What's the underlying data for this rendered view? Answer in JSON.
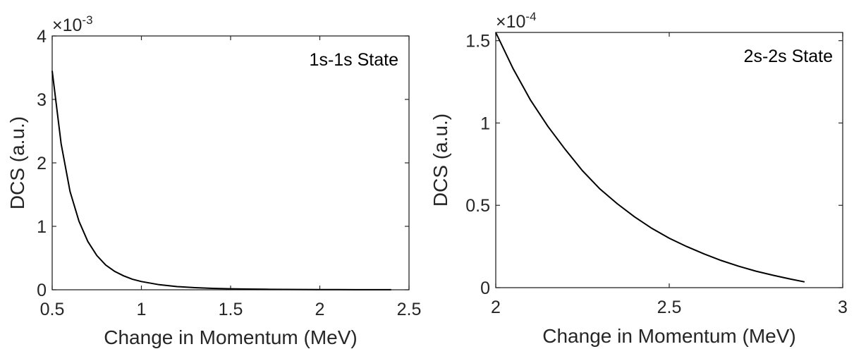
{
  "chart_data": [
    {
      "type": "line",
      "annotation": "1s-1s State",
      "xlabel": "Change in Momentum (MeV)",
      "ylabel": "DCS (a.u.)",
      "xlim": [
        0.5,
        2.5
      ],
      "ylim": [
        0,
        4
      ],
      "y_multiplier": "×10",
      "y_multiplier_exp": "-3",
      "xticks": [
        "0.5",
        "1",
        "1.5",
        "2",
        "2.5"
      ],
      "xtick_values": [
        0.5,
        1,
        1.5,
        2,
        2.5
      ],
      "yticks": [
        "0",
        "1",
        "2",
        "3",
        "4"
      ],
      "ytick_values": [
        0,
        1,
        2,
        3,
        4
      ],
      "grid": false,
      "series": [
        {
          "x": [
            0.5,
            0.55,
            0.6,
            0.65,
            0.7,
            0.75,
            0.8,
            0.85,
            0.9,
            0.95,
            1.0,
            1.1,
            1.2,
            1.3,
            1.4,
            1.5,
            1.6,
            1.7,
            1.8,
            1.9,
            2.0,
            2.1,
            2.2,
            2.3,
            2.4
          ],
          "y": [
            3.45,
            2.3,
            1.55,
            1.08,
            0.76,
            0.54,
            0.39,
            0.29,
            0.22,
            0.165,
            0.13,
            0.08,
            0.05,
            0.033,
            0.022,
            0.015,
            0.011,
            0.008,
            0.006,
            0.004,
            0.003,
            0.002,
            0.0015,
            0.001,
            0.001
          ]
        }
      ],
      "color": "#000000"
    },
    {
      "type": "line",
      "annotation": "2s-2s State",
      "xlabel": "Change in Momentum (MeV)",
      "ylabel": "DCS (a.u.)",
      "xlim": [
        2,
        3
      ],
      "ylim": [
        0,
        1.55
      ],
      "y_multiplier": "×10",
      "y_multiplier_exp": "-4",
      "xticks": [
        "2",
        "2.5",
        "3"
      ],
      "xtick_values": [
        2,
        2.5,
        3
      ],
      "yticks": [
        "0",
        "0.5",
        "1",
        "1.5"
      ],
      "ytick_values": [
        0,
        0.5,
        1,
        1.5
      ],
      "grid": false,
      "series": [
        {
          "x": [
            2.0,
            2.05,
            2.1,
            2.15,
            2.2,
            2.25,
            2.3,
            2.35,
            2.4,
            2.45,
            2.5,
            2.55,
            2.6,
            2.65,
            2.7,
            2.75,
            2.8,
            2.85,
            2.89
          ],
          "y": [
            1.55,
            1.33,
            1.14,
            0.98,
            0.84,
            0.71,
            0.6,
            0.51,
            0.43,
            0.36,
            0.3,
            0.25,
            0.205,
            0.165,
            0.13,
            0.1,
            0.075,
            0.052,
            0.035
          ]
        }
      ],
      "color": "#000000"
    }
  ]
}
